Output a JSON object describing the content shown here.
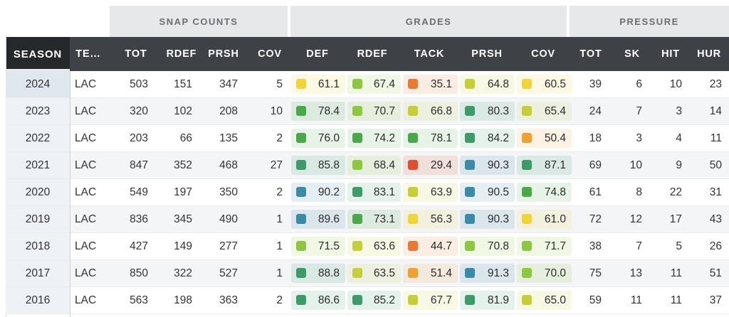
{
  "groups": {
    "snap": "SNAP COUNTS",
    "grades": "GRADES",
    "pressure": "PRESSURE"
  },
  "headers": [
    "SEASON",
    "TE…",
    "TOT",
    "RDEF",
    "PRSH",
    "COV",
    "DEF",
    "RDEF",
    "TACK",
    "PRSH",
    "COV",
    "TOT",
    "SK",
    "HIT",
    "HUR"
  ],
  "grade_colors": {
    "elite": "#3a8aa8",
    "high": "#3d9b6a",
    "good": "#4aa84a",
    "above": "#8dc63f",
    "average": "#c5cf3b",
    "below": "#f1d33a",
    "low": "#f0a030",
    "poor": "#ea7a33",
    "bad": "#e05030"
  },
  "rows": [
    {
      "season": "2024",
      "team": "LAC",
      "tot": "503",
      "rdef": "151",
      "prsh": "347",
      "cov": "5",
      "grades": [
        {
          "v": "61.1",
          "t": "below"
        },
        {
          "v": "67.4",
          "t": "above"
        },
        {
          "v": "35.1",
          "t": "poor"
        },
        {
          "v": "64.8",
          "t": "average"
        },
        {
          "v": "60.5",
          "t": "below"
        }
      ],
      "p_tot": "39",
      "sk": "6",
      "hit": "10",
      "hur": "23"
    },
    {
      "season": "2023",
      "team": "LAC",
      "tot": "320",
      "rdef": "102",
      "prsh": "208",
      "cov": "10",
      "grades": [
        {
          "v": "78.4",
          "t": "good"
        },
        {
          "v": "70.7",
          "t": "above"
        },
        {
          "v": "66.8",
          "t": "average"
        },
        {
          "v": "80.3",
          "t": "high"
        },
        {
          "v": "65.4",
          "t": "average"
        }
      ],
      "p_tot": "24",
      "sk": "7",
      "hit": "3",
      "hur": "14"
    },
    {
      "season": "2022",
      "team": "LAC",
      "tot": "203",
      "rdef": "66",
      "prsh": "135",
      "cov": "2",
      "grades": [
        {
          "v": "76.0",
          "t": "good"
        },
        {
          "v": "74.2",
          "t": "good"
        },
        {
          "v": "78.1",
          "t": "good"
        },
        {
          "v": "84.2",
          "t": "high"
        },
        {
          "v": "50.4",
          "t": "low"
        }
      ],
      "p_tot": "18",
      "sk": "3",
      "hit": "4",
      "hur": "11"
    },
    {
      "season": "2021",
      "team": "LAC",
      "tot": "847",
      "rdef": "352",
      "prsh": "468",
      "cov": "27",
      "grades": [
        {
          "v": "85.8",
          "t": "high"
        },
        {
          "v": "68.4",
          "t": "above"
        },
        {
          "v": "29.4",
          "t": "bad"
        },
        {
          "v": "90.3",
          "t": "elite"
        },
        {
          "v": "87.1",
          "t": "high"
        }
      ],
      "p_tot": "69",
      "sk": "10",
      "hit": "9",
      "hur": "50"
    },
    {
      "season": "2020",
      "team": "LAC",
      "tot": "549",
      "rdef": "197",
      "prsh": "350",
      "cov": "2",
      "grades": [
        {
          "v": "90.2",
          "t": "elite"
        },
        {
          "v": "83.1",
          "t": "high"
        },
        {
          "v": "63.9",
          "t": "average"
        },
        {
          "v": "90.5",
          "t": "elite"
        },
        {
          "v": "74.8",
          "t": "good"
        }
      ],
      "p_tot": "61",
      "sk": "8",
      "hit": "22",
      "hur": "31"
    },
    {
      "season": "2019",
      "team": "LAC",
      "tot": "836",
      "rdef": "345",
      "prsh": "490",
      "cov": "1",
      "grades": [
        {
          "v": "89.6",
          "t": "elite"
        },
        {
          "v": "73.1",
          "t": "good"
        },
        {
          "v": "56.3",
          "t": "below"
        },
        {
          "v": "90.3",
          "t": "elite"
        },
        {
          "v": "61.0",
          "t": "below"
        }
      ],
      "p_tot": "72",
      "sk": "12",
      "hit": "17",
      "hur": "43"
    },
    {
      "season": "2018",
      "team": "LAC",
      "tot": "427",
      "rdef": "149",
      "prsh": "277",
      "cov": "1",
      "grades": [
        {
          "v": "71.5",
          "t": "above"
        },
        {
          "v": "63.6",
          "t": "average"
        },
        {
          "v": "44.7",
          "t": "poor"
        },
        {
          "v": "70.8",
          "t": "above"
        },
        {
          "v": "71.7",
          "t": "above"
        }
      ],
      "p_tot": "38",
      "sk": "7",
      "hit": "5",
      "hur": "26"
    },
    {
      "season": "2017",
      "team": "LAC",
      "tot": "850",
      "rdef": "322",
      "prsh": "527",
      "cov": "1",
      "grades": [
        {
          "v": "88.8",
          "t": "high"
        },
        {
          "v": "63.5",
          "t": "average"
        },
        {
          "v": "51.4",
          "t": "low"
        },
        {
          "v": "91.3",
          "t": "elite"
        },
        {
          "v": "70.0",
          "t": "above"
        }
      ],
      "p_tot": "75",
      "sk": "13",
      "hit": "11",
      "hur": "51"
    },
    {
      "season": "2016",
      "team": "LAC",
      "tot": "563",
      "rdef": "198",
      "prsh": "363",
      "cov": "2",
      "grades": [
        {
          "v": "86.6",
          "t": "high"
        },
        {
          "v": "85.2",
          "t": "high"
        },
        {
          "v": "67.7",
          "t": "average"
        },
        {
          "v": "81.9",
          "t": "high"
        },
        {
          "v": "65.0",
          "t": "average"
        }
      ],
      "p_tot": "59",
      "sk": "11",
      "hit": "11",
      "hur": "37"
    }
  ]
}
